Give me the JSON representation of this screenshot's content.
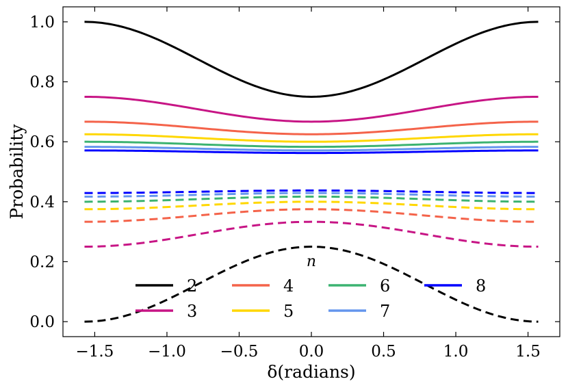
{
  "chart_data": {
    "type": "line",
    "title": "",
    "xlabel": "δ(radians)",
    "ylabel": "Probability",
    "xlim": [
      -1.72,
      1.72
    ],
    "ylim": [
      -0.05,
      1.05
    ],
    "xticks": [
      -1.5,
      -1.0,
      -0.5,
      0.0,
      0.5,
      1.0,
      1.5
    ],
    "xtick_labels": [
      "−1.5",
      "−1.0",
      "−0.5",
      "0.0",
      "0.5",
      "1.0",
      "1.5"
    ],
    "yticks": [
      0.0,
      0.2,
      0.4,
      0.6,
      0.8,
      1.0
    ],
    "ytick_labels": [
      "0.0",
      "0.2",
      "0.4",
      "0.6",
      "0.8",
      "1.0"
    ],
    "x_range": [
      -1.5708,
      1.5708
    ],
    "grid": false,
    "legend": {
      "title": "n",
      "placement": "lower-center",
      "entries": [
        {
          "label": "2",
          "color": "#000000"
        },
        {
          "label": "3",
          "color": "#c71585"
        },
        {
          "label": "4",
          "color": "#f4634a"
        },
        {
          "label": "5",
          "color": "#ffd700"
        },
        {
          "label": "6",
          "color": "#3cb371"
        },
        {
          "label": "7",
          "color": "#6495ed"
        },
        {
          "label": "8",
          "color": "#0000ff"
        }
      ]
    },
    "series": [
      {
        "name": "2",
        "n": 2,
        "color": "#000000",
        "solid_edge": 1.0,
        "solid_center": 0.75,
        "dashed_edge": 0.0,
        "dashed_center": 0.25
      },
      {
        "name": "3",
        "n": 3,
        "color": "#c71585",
        "solid_edge": 0.75,
        "solid_center": 0.667,
        "dashed_edge": 0.25,
        "dashed_center": 0.333
      },
      {
        "name": "4",
        "n": 4,
        "color": "#f4634a",
        "solid_edge": 0.667,
        "solid_center": 0.625,
        "dashed_edge": 0.333,
        "dashed_center": 0.375
      },
      {
        "name": "5",
        "n": 5,
        "color": "#ffd700",
        "solid_edge": 0.625,
        "solid_center": 0.6,
        "dashed_edge": 0.375,
        "dashed_center": 0.4
      },
      {
        "name": "6",
        "n": 6,
        "color": "#3cb371",
        "solid_edge": 0.6,
        "solid_center": 0.583,
        "dashed_edge": 0.4,
        "dashed_center": 0.417
      },
      {
        "name": "7",
        "n": 7,
        "color": "#6495ed",
        "solid_edge": 0.583,
        "solid_center": 0.571,
        "dashed_edge": 0.417,
        "dashed_center": 0.429
      },
      {
        "name": "8",
        "n": 8,
        "color": "#0000ff",
        "solid_edge": 0.571,
        "solid_center": 0.5625,
        "dashed_edge": 0.429,
        "dashed_center": 0.4375
      }
    ]
  }
}
